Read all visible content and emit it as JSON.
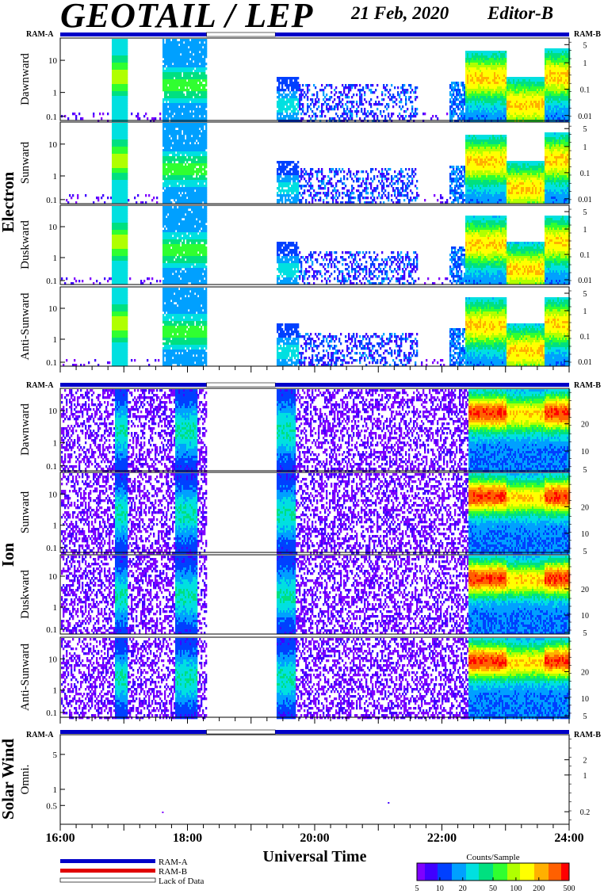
{
  "header": {
    "title": "GEOTAIL / LEP",
    "date": "21 Feb, 2020",
    "editor": "Editor-B"
  },
  "groups": [
    {
      "label": "Electron"
    },
    {
      "label": "Ion"
    },
    {
      "label": "Solar Wind"
    }
  ],
  "ram": {
    "left_label": "RAM-A",
    "right_label": "RAM-B"
  },
  "x_axis": {
    "title": "Universal Time",
    "ticks": [
      "16:00",
      "18:00",
      "20:00",
      "22:00",
      "24:00"
    ]
  },
  "legend": {
    "ram_a": "RAM-A",
    "ram_b": "RAM-B",
    "lack": "Lack of Data",
    "colorbar_title": "Counts/Sample",
    "colorbar_ticks": [
      "5",
      "10",
      "20",
      "50",
      "100",
      "200",
      "500"
    ]
  },
  "colors": {
    "ram_a": "#0000c8",
    "ram_b": "#e00000",
    "colormap": [
      "#7f00ff",
      "#4000ff",
      "#0040ff",
      "#00a0ff",
      "#00e0e0",
      "#00e080",
      "#30ff30",
      "#b0ff00",
      "#ffff00",
      "#ffb000",
      "#ff6000",
      "#ff0000"
    ]
  },
  "chart_data": [
    {
      "type": "heatmap",
      "description": "Energy-time spectrograms; x = universal time (hours), y = energy (keV, log scale), color = counts/sample",
      "xlabel": "Universal Time",
      "xlim": [
        16,
        24
      ],
      "panels": [
        {
          "group": "Electron",
          "ylabel": "Dawnward",
          "yticks": [
            "10",
            "1",
            "0.1"
          ],
          "right_ticks": [
            "5",
            "1",
            "0.1",
            "0.01"
          ]
        },
        {
          "group": "Electron",
          "ylabel": "Sunward",
          "yticks": [
            "10",
            "1",
            "0.1"
          ],
          "right_ticks": [
            "5",
            "1",
            "0.1",
            "0.01"
          ]
        },
        {
          "group": "Electron",
          "ylabel": "Duskward",
          "yticks": [
            "10",
            "1",
            "0.1"
          ],
          "right_ticks": [
            "5",
            "1",
            "0.1",
            "0.01"
          ]
        },
        {
          "group": "Electron",
          "ylabel": "Anti-Sunward",
          "yticks": [
            "10",
            "1",
            "0.1"
          ],
          "right_ticks": [
            "5",
            "1",
            "0.1",
            "0.01"
          ]
        },
        {
          "group": "Ion",
          "ylabel": "Dawnward",
          "yticks": [
            "10",
            "1",
            "0.1"
          ],
          "right_ticks": [
            "20",
            "10",
            "5"
          ]
        },
        {
          "group": "Ion",
          "ylabel": "Sunward",
          "yticks": [
            "10",
            "1",
            "0.1"
          ],
          "right_ticks": [
            "20",
            "10",
            "5"
          ]
        },
        {
          "group": "Ion",
          "ylabel": "Duskward",
          "yticks": [
            "10",
            "1",
            "0.1"
          ],
          "right_ticks": [
            "20",
            "10",
            "5"
          ]
        },
        {
          "group": "Ion",
          "ylabel": "Anti-Sunward",
          "yticks": [
            "10",
            "1",
            "0.1"
          ],
          "right_ticks": [
            "20",
            "10",
            "5"
          ]
        },
        {
          "group": "Solar Wind",
          "ylabel": "Omni.",
          "yticks": [
            "5",
            "1",
            "0.5"
          ],
          "right_ticks": [
            "2",
            "1",
            "0.2"
          ]
        }
      ],
      "data_gaps_hours": [
        [
          18.3,
          19.38
        ]
      ],
      "electron_active_intervals_hours": [
        [
          16.8,
          17.05
        ],
        [
          17.6,
          18.3
        ],
        [
          19.38,
          20.6
        ],
        [
          20.8,
          21.6
        ],
        [
          22.1,
          24.0
        ]
      ],
      "colorbar": {
        "label": "Counts/Sample",
        "scale": "log",
        "range": [
          5,
          500
        ]
      }
    }
  ]
}
